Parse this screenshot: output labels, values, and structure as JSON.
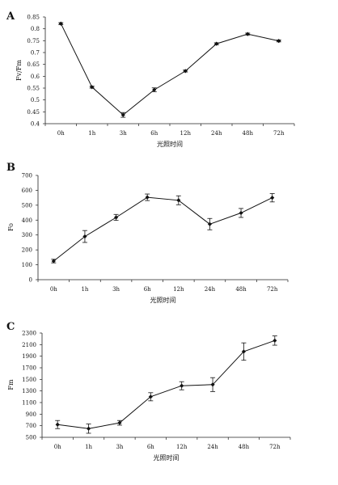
{
  "chart_data": [
    {
      "panel": "A",
      "type": "line",
      "ylabel": "Fv/Fm",
      "xlabel": "光照时间",
      "categories": [
        "0h",
        "1h",
        "3h",
        "6h",
        "12h",
        "24h",
        "48h",
        "72h"
      ],
      "values": [
        0.822,
        0.554,
        0.437,
        0.543,
        0.622,
        0.737,
        0.778,
        0.749
      ],
      "errors": [
        0.004,
        0.004,
        0.01,
        0.008,
        0.004,
        0.004,
        0.004,
        0.004
      ],
      "ylim": [
        0.4,
        0.85
      ],
      "yticks": [
        0.4,
        0.45,
        0.5,
        0.55,
        0.6,
        0.65,
        0.7,
        0.75,
        0.8,
        0.85
      ],
      "ytick_labels": [
        "0.4",
        "0.45",
        "0.5",
        "0.55",
        "0.6",
        "0.65",
        "0.7",
        "0.75",
        "0.8",
        "0.85"
      ],
      "grid": false
    },
    {
      "panel": "B",
      "type": "line",
      "ylabel": "Fo",
      "xlabel": "光照时间",
      "categories": [
        "0h",
        "1h",
        "3h",
        "6h",
        "12h",
        "24h",
        "48h",
        "72h"
      ],
      "values": [
        125,
        290,
        418,
        553,
        533,
        373,
        448,
        550
      ],
      "errors": [
        12,
        40,
        20,
        22,
        30,
        38,
        30,
        28
      ],
      "ylim": [
        0,
        700
      ],
      "yticks": [
        0,
        100,
        200,
        300,
        400,
        500,
        600,
        700
      ],
      "ytick_labels": [
        "0",
        "100",
        "200",
        "300",
        "400",
        "500",
        "600",
        "700"
      ],
      "grid": false
    },
    {
      "panel": "C",
      "type": "line",
      "ylabel": "Fm",
      "xlabel": "光照时间",
      "categories": [
        "0h",
        "1h",
        "3h",
        "6h",
        "12h",
        "24h",
        "48h",
        "72h"
      ],
      "values": [
        720,
        650,
        750,
        1200,
        1390,
        1410,
        1980,
        2170
      ],
      "errors": [
        70,
        80,
        40,
        70,
        70,
        120,
        150,
        80
      ],
      "ylim": [
        500,
        2300
      ],
      "yticks": [
        500,
        700,
        900,
        1100,
        1300,
        1500,
        1700,
        1900,
        2100,
        2300
      ],
      "ytick_labels": [
        "500",
        "700",
        "900",
        "1100",
        "1300",
        "1500",
        "1700",
        "1900",
        "2100",
        "2300"
      ],
      "grid": false
    }
  ]
}
